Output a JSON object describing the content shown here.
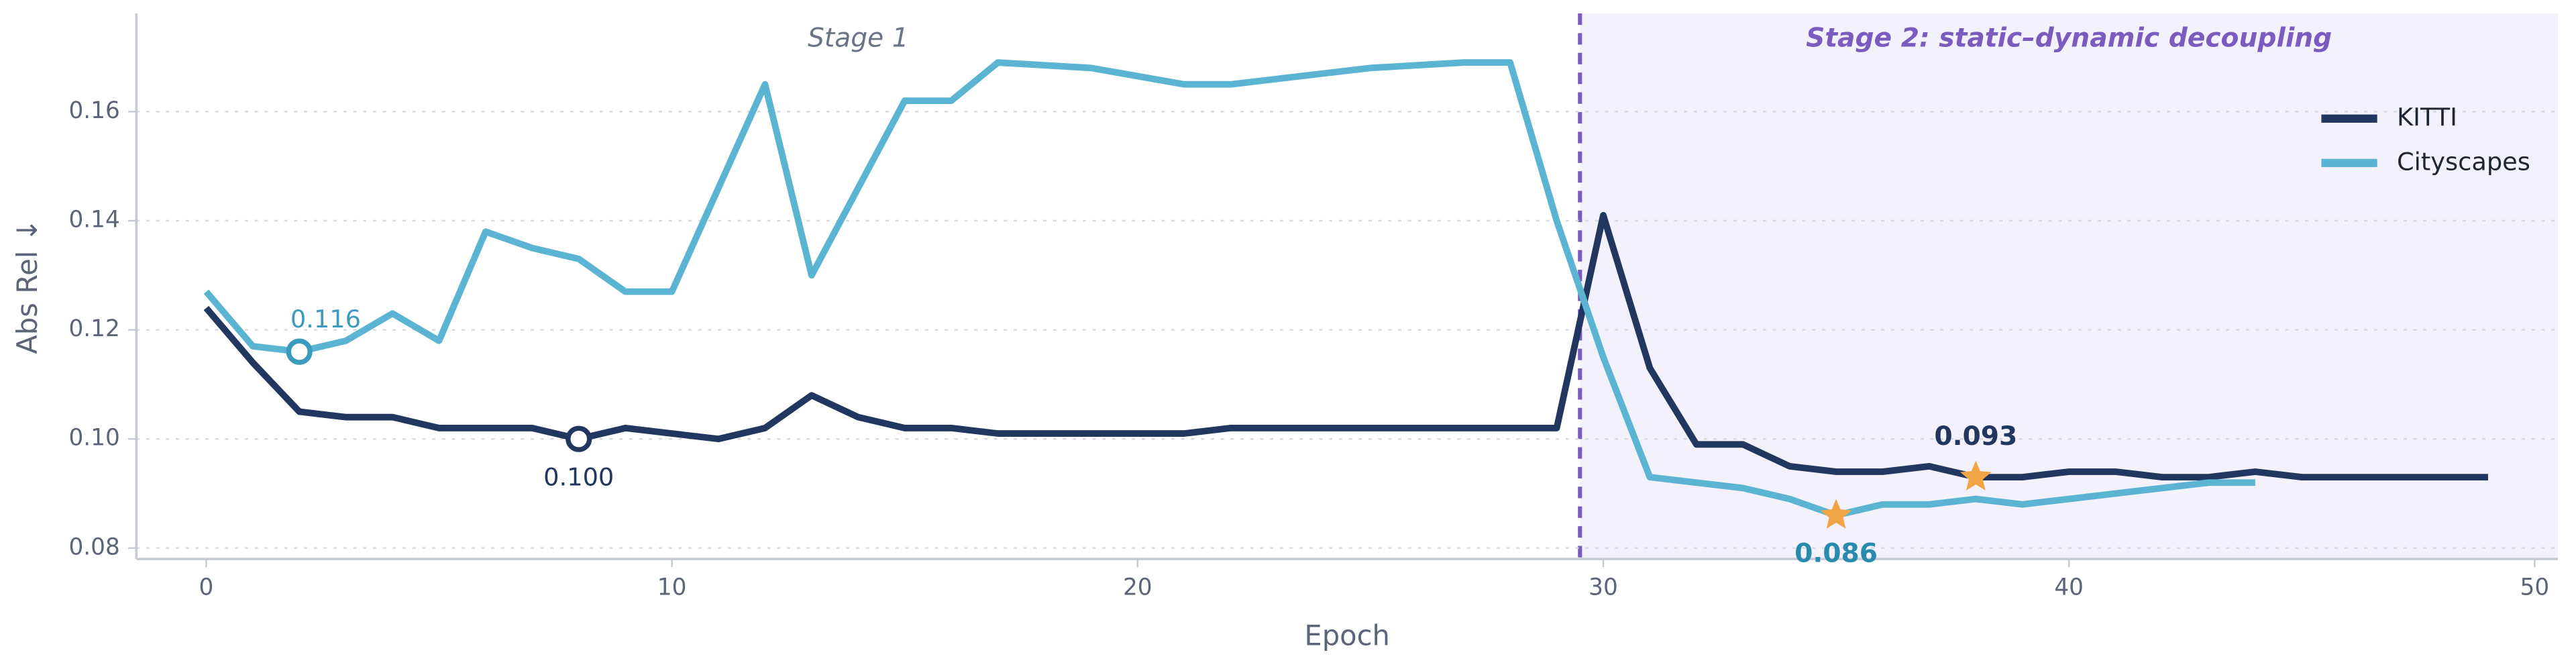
{
  "chart_data": {
    "type": "line",
    "xlabel": "Epoch",
    "ylabel": "Abs Rel ↓",
    "x": [
      0,
      1,
      2,
      3,
      4,
      5,
      6,
      7,
      8,
      9,
      10,
      11,
      12,
      13,
      14,
      15,
      16,
      17,
      18,
      19,
      20,
      21,
      22,
      23,
      24,
      25,
      26,
      27,
      28,
      29,
      30,
      31,
      32,
      33,
      34,
      35,
      36,
      37,
      38,
      39,
      40,
      41,
      42,
      43,
      44,
      45,
      46,
      47,
      48,
      49
    ],
    "series": [
      {
        "name": "KITTI",
        "color": "#22375f",
        "values": [
          0.124,
          0.114,
          0.105,
          0.104,
          0.104,
          0.102,
          0.102,
          0.102,
          0.1,
          0.102,
          0.101,
          0.1,
          0.102,
          0.108,
          0.104,
          0.102,
          0.102,
          0.101,
          0.101,
          0.101,
          0.101,
          0.101,
          0.102,
          0.102,
          0.102,
          0.102,
          0.102,
          0.102,
          0.102,
          0.102,
          0.141,
          0.113,
          0.099,
          0.099,
          0.095,
          0.094,
          0.094,
          0.095,
          0.093,
          0.093,
          0.094,
          0.094,
          0.093,
          0.093,
          0.094,
          0.093,
          0.093,
          0.093,
          0.093,
          0.093
        ]
      },
      {
        "name": "Cityscapes",
        "color": "#5ab4d2",
        "values": [
          0.127,
          0.117,
          0.116,
          0.118,
          0.123,
          0.118,
          0.138,
          0.135,
          0.133,
          0.127,
          0.127,
          0.146,
          0.165,
          0.13,
          0.146,
          0.162,
          0.162,
          0.169,
          0.1685,
          0.168,
          0.1665,
          0.165,
          0.165,
          0.166,
          0.167,
          0.168,
          0.1685,
          0.169,
          0.169,
          0.14,
          0.115,
          0.093,
          0.092,
          0.091,
          0.089,
          0.086,
          0.088,
          0.088,
          0.089,
          0.088,
          0.089,
          0.09,
          0.091,
          0.092,
          0.092,
          null,
          null,
          null,
          null,
          null
        ]
      }
    ],
    "xlim": [
      -1.5,
      50.5
    ],
    "ylim": [
      0.078,
      0.178
    ],
    "xticks": [
      0,
      10,
      20,
      30,
      40,
      50
    ],
    "yticks": [
      0.08,
      {
        "value": 0.1,
        "label": "0.10"
      },
      0.12,
      0.14,
      0.16
    ],
    "grid": true,
    "legend": "upper right",
    "stages": [
      {
        "label": "Stage 1",
        "from": -1.5,
        "to": 29.5,
        "color": "#6b7386"
      },
      {
        "label": "Stage 2: static–dynamic decoupling",
        "from": 29.5,
        "to": 50.5,
        "color": "#7a5cc0",
        "shade": "#f3f1fb"
      }
    ],
    "annotations": [
      {
        "x": 2,
        "value": 0.116,
        "label": "0.116",
        "marker": "circle",
        "color": "#3a9bbd",
        "placement": "above"
      },
      {
        "x": 8,
        "value": 0.1,
        "label": "0.100",
        "marker": "circle",
        "color": "#22375f",
        "placement": "below"
      },
      {
        "x": 38,
        "value": 0.093,
        "label": "0.093",
        "marker": "star",
        "color": "#22375f",
        "placement": "above"
      },
      {
        "x": 35,
        "value": 0.086,
        "label": "0.086",
        "marker": "star",
        "color": "#2a8aad",
        "placement": "below"
      }
    ]
  }
}
